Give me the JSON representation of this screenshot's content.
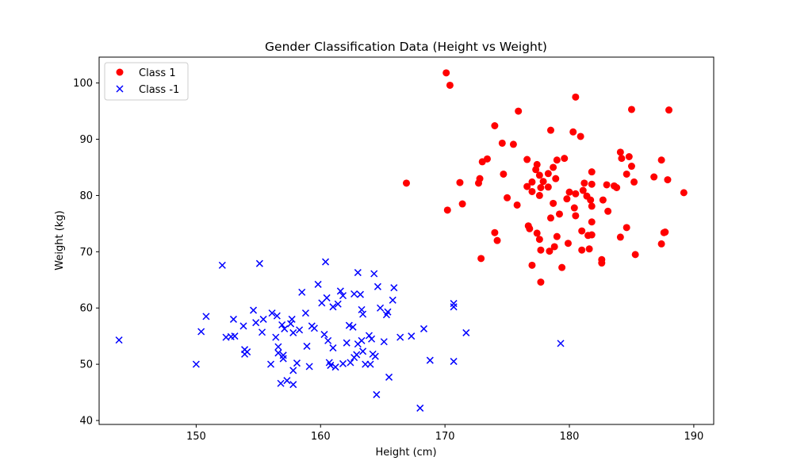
{
  "chart_data": {
    "type": "scatter",
    "title": "Gender Classification Data (Height vs Weight)",
    "xlabel": "Height (cm)",
    "ylabel": "Weight (kg)",
    "xlim": [
      142.2,
      191.6
    ],
    "ylim": [
      39.3,
      104.6
    ],
    "xticks": [
      150,
      160,
      170,
      180,
      190
    ],
    "yticks": [
      40,
      50,
      60,
      70,
      80,
      90,
      100
    ],
    "grid": false,
    "legend_position": "top-left",
    "series": [
      {
        "name": "Class 1",
        "marker": "circle",
        "color": "#ff0000",
        "points": [
          [
            170.1,
            101.8
          ],
          [
            170.4,
            99.6
          ],
          [
            180.5,
            97.5
          ],
          [
            175.9,
            95.0
          ],
          [
            185.0,
            95.3
          ],
          [
            188.0,
            95.2
          ],
          [
            174.0,
            92.4
          ],
          [
            178.5,
            91.6
          ],
          [
            180.3,
            91.3
          ],
          [
            180.9,
            90.5
          ],
          [
            174.6,
            89.3
          ],
          [
            175.5,
            89.1
          ],
          [
            184.1,
            87.7
          ],
          [
            184.8,
            86.9
          ],
          [
            173.4,
            86.5
          ],
          [
            176.6,
            86.4
          ],
          [
            179.0,
            86.3
          ],
          [
            179.6,
            86.6
          ],
          [
            184.2,
            86.6
          ],
          [
            187.4,
            86.3
          ],
          [
            173.0,
            86.0
          ],
          [
            177.4,
            85.5
          ],
          [
            178.7,
            85.0
          ],
          [
            185.0,
            85.2
          ],
          [
            177.3,
            84.6
          ],
          [
            181.8,
            84.2
          ],
          [
            174.7,
            83.8
          ],
          [
            177.6,
            83.6
          ],
          [
            178.3,
            83.9
          ],
          [
            184.6,
            83.8
          ],
          [
            186.8,
            83.3
          ],
          [
            172.8,
            83.0
          ],
          [
            178.9,
            83.0
          ],
          [
            177.0,
            82.4
          ],
          [
            171.2,
            82.3
          ],
          [
            172.7,
            82.2
          ],
          [
            177.9,
            82.5
          ],
          [
            181.2,
            82.2
          ],
          [
            181.8,
            82.0
          ],
          [
            185.2,
            82.4
          ],
          [
            187.9,
            82.8
          ],
          [
            183.0,
            81.9
          ],
          [
            176.6,
            81.6
          ],
          [
            177.7,
            81.4
          ],
          [
            178.3,
            81.5
          ],
          [
            183.6,
            81.7
          ],
          [
            183.8,
            81.4
          ],
          [
            181.1,
            80.9
          ],
          [
            180.0,
            80.6
          ],
          [
            180.5,
            80.3
          ],
          [
            177.0,
            80.7
          ],
          [
            189.2,
            80.5
          ],
          [
            177.6,
            80.0
          ],
          [
            175.0,
            79.6
          ],
          [
            181.4,
            79.9
          ],
          [
            179.8,
            79.4
          ],
          [
            182.7,
            79.2
          ],
          [
            181.7,
            79.2
          ],
          [
            178.7,
            78.6
          ],
          [
            171.4,
            78.5
          ],
          [
            175.8,
            78.3
          ],
          [
            181.8,
            78.1
          ],
          [
            180.4,
            77.8
          ],
          [
            170.2,
            77.4
          ],
          [
            183.1,
            77.2
          ],
          [
            179.2,
            76.7
          ],
          [
            180.5,
            76.4
          ],
          [
            178.5,
            76.0
          ],
          [
            181.8,
            75.3
          ],
          [
            176.7,
            74.6
          ],
          [
            176.8,
            74.1
          ],
          [
            184.6,
            74.3
          ],
          [
            181.0,
            73.7
          ],
          [
            177.4,
            73.3
          ],
          [
            181.5,
            72.9
          ],
          [
            181.8,
            73.0
          ],
          [
            187.7,
            73.5
          ],
          [
            187.6,
            73.4
          ],
          [
            174.0,
            73.4
          ],
          [
            179.0,
            72.7
          ],
          [
            177.6,
            72.2
          ],
          [
            184.1,
            72.6
          ],
          [
            174.2,
            72.0
          ],
          [
            179.9,
            71.5
          ],
          [
            187.4,
            71.4
          ],
          [
            178.8,
            70.9
          ],
          [
            181.0,
            70.3
          ],
          [
            181.6,
            70.5
          ],
          [
            177.7,
            70.3
          ],
          [
            178.4,
            70.1
          ],
          [
            185.3,
            69.5
          ],
          [
            172.9,
            68.8
          ],
          [
            182.6,
            68.6
          ],
          [
            182.6,
            68.0
          ],
          [
            177.0,
            67.6
          ],
          [
            179.4,
            67.2
          ],
          [
            177.7,
            64.6
          ],
          [
            166.9,
            82.2
          ]
        ]
      },
      {
        "name": "Class -1",
        "marker": "x",
        "color": "#0000ff",
        "points": [
          [
            143.8,
            54.3
          ],
          [
            150.0,
            50.0
          ],
          [
            150.4,
            55.8
          ],
          [
            150.8,
            58.5
          ],
          [
            152.1,
            67.6
          ],
          [
            152.4,
            54.8
          ],
          [
            152.8,
            54.9
          ],
          [
            153.0,
            58.0
          ],
          [
            153.1,
            55.0
          ],
          [
            153.8,
            56.8
          ],
          [
            153.9,
            52.6
          ],
          [
            153.9,
            51.8
          ],
          [
            154.1,
            52.2
          ],
          [
            154.6,
            59.6
          ],
          [
            154.8,
            57.4
          ],
          [
            155.1,
            67.9
          ],
          [
            155.3,
            55.7
          ],
          [
            155.4,
            58.0
          ],
          [
            156.0,
            50.0
          ],
          [
            156.1,
            59.1
          ],
          [
            156.4,
            54.8
          ],
          [
            156.5,
            58.6
          ],
          [
            156.6,
            53.1
          ],
          [
            156.6,
            52.0
          ],
          [
            156.8,
            46.6
          ],
          [
            156.9,
            57.0
          ],
          [
            157.0,
            51.0
          ],
          [
            157.0,
            51.6
          ],
          [
            157.1,
            56.3
          ],
          [
            157.3,
            47.1
          ],
          [
            157.6,
            57.2
          ],
          [
            157.7,
            58.0
          ],
          [
            157.8,
            46.4
          ],
          [
            157.8,
            48.9
          ],
          [
            157.8,
            55.6
          ],
          [
            158.1,
            50.2
          ],
          [
            158.3,
            56.1
          ],
          [
            158.5,
            62.8
          ],
          [
            158.8,
            59.1
          ],
          [
            158.9,
            53.2
          ],
          [
            159.1,
            49.6
          ],
          [
            159.3,
            56.8
          ],
          [
            159.5,
            56.4
          ],
          [
            159.8,
            64.2
          ],
          [
            160.1,
            60.9
          ],
          [
            160.3,
            55.3
          ],
          [
            160.4,
            68.2
          ],
          [
            160.5,
            61.8
          ],
          [
            160.6,
            54.2
          ],
          [
            160.7,
            50.3
          ],
          [
            160.8,
            49.8
          ],
          [
            161.0,
            52.9
          ],
          [
            161.0,
            60.2
          ],
          [
            161.2,
            49.5
          ],
          [
            161.4,
            60.7
          ],
          [
            161.6,
            63.0
          ],
          [
            161.8,
            62.2
          ],
          [
            161.8,
            50.1
          ],
          [
            162.1,
            53.8
          ],
          [
            162.3,
            56.9
          ],
          [
            162.4,
            50.3
          ],
          [
            162.6,
            56.6
          ],
          [
            162.7,
            51.2
          ],
          [
            162.7,
            62.5
          ],
          [
            162.9,
            51.7
          ],
          [
            163.0,
            66.3
          ],
          [
            163.0,
            53.6
          ],
          [
            163.2,
            62.4
          ],
          [
            163.3,
            59.7
          ],
          [
            163.3,
            54.2
          ],
          [
            163.4,
            58.9
          ],
          [
            163.4,
            52.3
          ],
          [
            163.6,
            50.0
          ],
          [
            163.9,
            55.1
          ],
          [
            164.0,
            50.0
          ],
          [
            164.1,
            54.5
          ],
          [
            164.2,
            51.8
          ],
          [
            164.3,
            66.1
          ],
          [
            164.4,
            51.4
          ],
          [
            164.6,
            63.8
          ],
          [
            164.5,
            44.6
          ],
          [
            164.8,
            60.0
          ],
          [
            165.1,
            54.0
          ],
          [
            165.3,
            58.8
          ],
          [
            165.4,
            59.3
          ],
          [
            165.5,
            47.7
          ],
          [
            165.8,
            61.4
          ],
          [
            165.9,
            63.6
          ],
          [
            166.4,
            54.8
          ],
          [
            167.3,
            55.0
          ],
          [
            168.0,
            42.2
          ],
          [
            168.3,
            56.3
          ],
          [
            168.8,
            50.7
          ],
          [
            170.7,
            60.8
          ],
          [
            170.7,
            60.2
          ],
          [
            170.7,
            50.5
          ],
          [
            171.7,
            55.6
          ],
          [
            179.3,
            53.7
          ]
        ]
      }
    ]
  }
}
